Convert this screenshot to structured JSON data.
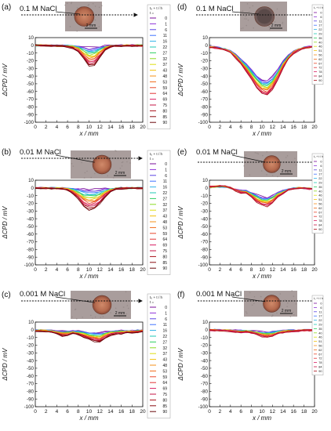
{
  "figure": {
    "panel_labels": [
      "(a)",
      "(b)",
      "(c)",
      "(d)",
      "(e)",
      "(f)"
    ],
    "scale_bar_label": "2 mm"
  },
  "legend_title_lines": [
    "t₀ + t / h",
    "t ="
  ],
  "legend_title_compact": "t₀ + t / h",
  "colors": [
    "#7a0d9a",
    "#8e34d8",
    "#5b44e3",
    "#3f72ff",
    "#2fb3e8",
    "#1fc9b5",
    "#2dcf62",
    "#8bdc22",
    "#dede12",
    "#f2c10c",
    "#f6901a",
    "#f06a16",
    "#e8482c",
    "#e23236",
    "#d81e62",
    "#c41444",
    "#aa1018",
    "#8a0c10",
    "#6a080c",
    "#4a0608"
  ],
  "chart_data": [
    {
      "panel": "(a)",
      "type": "line",
      "title": "0.1 M NaCl",
      "xlabel": "x / mm",
      "ylabel": "ΔCPD / mV",
      "xlim": [
        0,
        20
      ],
      "ylim": [
        -100,
        10
      ],
      "xticks": [
        0,
        2,
        4,
        6,
        8,
        10,
        12,
        14,
        16,
        18,
        20
      ],
      "yticks": [
        10,
        0,
        -10,
        -20,
        -30,
        -40,
        -50,
        -60,
        -70,
        -80,
        -90,
        -100
      ],
      "legend": [
        "0",
        "1",
        "6",
        "11",
        "16",
        "22",
        "27",
        "32",
        "37",
        "43",
        "48",
        "53",
        "59",
        "64",
        "69",
        "75",
        "80",
        "85",
        "90"
      ],
      "x": [
        0,
        1,
        2,
        3,
        4,
        5,
        6,
        7,
        8,
        9,
        10,
        11,
        12,
        13,
        14,
        15,
        16,
        17,
        18,
        19,
        20
      ],
      "depth_first": -3,
      "depth_last": -29,
      "profile": [
        0,
        0,
        0.02,
        0.03,
        0.04,
        0.05,
        0.07,
        0.12,
        0.28,
        0.62,
        0.95,
        0.9,
        0.55,
        0.22,
        0.08,
        0.04,
        0.03,
        0.02,
        0.02,
        0.02,
        0.02
      ]
    },
    {
      "panel": "(b)",
      "type": "line",
      "title": "0.01 M NaCl",
      "xlabel": "x / mm",
      "ylabel": "ΔCPD / mV",
      "xlim": [
        0,
        20
      ],
      "ylim": [
        -100,
        10
      ],
      "xticks": [
        0,
        2,
        4,
        6,
        8,
        10,
        12,
        14,
        16,
        18,
        20
      ],
      "yticks": [
        10,
        0,
        -10,
        -20,
        -30,
        -40,
        -50,
        -60,
        -70,
        -80,
        -90,
        -100
      ],
      "legend": [
        "0",
        "1",
        "6",
        "11",
        "16",
        "22",
        "27",
        "32",
        "37",
        "43",
        "48",
        "53",
        "59",
        "64",
        "69",
        "75",
        "80",
        "85",
        "90"
      ],
      "x": [
        0,
        1,
        2,
        3,
        4,
        5,
        6,
        7,
        8,
        9,
        10,
        11,
        12,
        13,
        14,
        15,
        16,
        17,
        18,
        19,
        20
      ],
      "depth_first": -2,
      "depth_last": -30,
      "profile": [
        0,
        0,
        0.02,
        0.02,
        0.03,
        0.05,
        0.1,
        0.25,
        0.5,
        0.8,
        0.95,
        0.92,
        0.7,
        0.4,
        0.18,
        0.06,
        0.03,
        0.02,
        0.02,
        0.02,
        0.02
      ]
    },
    {
      "panel": "(c)",
      "type": "line",
      "title": "0.001 M NaCl",
      "xlabel": "x / mm",
      "ylabel": "ΔCPD / mV",
      "xlim": [
        0,
        20
      ],
      "ylim": [
        -100,
        10
      ],
      "xticks": [
        0,
        2,
        4,
        6,
        8,
        10,
        12,
        14,
        16,
        18,
        20
      ],
      "yticks": [
        10,
        0,
        -10,
        -20,
        -30,
        -40,
        -50,
        -60,
        -70,
        -80,
        -90,
        -100
      ],
      "legend": [
        "0",
        "1",
        "6",
        "11",
        "16",
        "22",
        "27",
        "32",
        "37",
        "43",
        "48",
        "53",
        "59",
        "64",
        "69",
        "75",
        "80",
        "85",
        "90"
      ],
      "x": [
        0,
        1,
        2,
        3,
        4,
        5,
        6,
        7,
        8,
        9,
        10,
        11,
        12,
        13,
        14,
        15,
        16,
        17,
        18,
        19,
        20
      ],
      "depth_first": -4,
      "depth_last": -16,
      "profile": [
        0.1,
        0.12,
        0.15,
        0.22,
        0.35,
        0.5,
        0.45,
        0.3,
        0.4,
        0.6,
        0.8,
        0.95,
        1.0,
        0.7,
        0.45,
        0.35,
        0.3,
        0.25,
        0.25,
        0.2,
        0.1
      ]
    },
    {
      "panel": "(d)",
      "type": "line",
      "title": "0.1 M NaCl",
      "xlabel": "x / mm",
      "ylabel": "ΔCPD / mV",
      "xlim": [
        0,
        20
      ],
      "ylim": [
        -100,
        10
      ],
      "xticks": [
        0,
        2,
        4,
        6,
        8,
        10,
        12,
        14,
        16,
        18,
        20
      ],
      "yticks": [
        10,
        0,
        -10,
        -20,
        -30,
        -40,
        -50,
        -60,
        -70,
        -80,
        -90,
        -100
      ],
      "legend": [
        "0",
        "6",
        "11",
        "17",
        "22",
        "29",
        "35",
        "40",
        "46",
        "51",
        "56",
        "62",
        "67",
        "72",
        "78",
        "84",
        "90"
      ],
      "x": [
        0,
        1,
        2,
        3,
        4,
        5,
        6,
        7,
        8,
        9,
        10,
        11,
        12,
        13,
        14,
        15,
        16,
        17,
        18,
        19,
        20
      ],
      "depth_first": -46,
      "depth_last": -65,
      "profile": [
        0.04,
        0.05,
        0.07,
        0.1,
        0.15,
        0.25,
        0.38,
        0.52,
        0.68,
        0.85,
        0.97,
        1.0,
        0.88,
        0.68,
        0.45,
        0.28,
        0.16,
        0.1,
        0.06,
        0.04,
        0.03
      ]
    },
    {
      "panel": "(e)",
      "type": "line",
      "title": "0.01 M NaCl",
      "xlabel": "x / mm",
      "ylabel": "ΔCPD / mV",
      "xlim": [
        0,
        20
      ],
      "ylim": [
        -100,
        10
      ],
      "xticks": [
        0,
        2,
        4,
        6,
        8,
        10,
        12,
        14,
        16,
        18,
        20
      ],
      "yticks": [
        10,
        0,
        -10,
        -20,
        -30,
        -40,
        -50,
        -60,
        -70,
        -80,
        -90,
        -100
      ],
      "legend": [
        "0",
        "6",
        "11",
        "17",
        "22",
        "29",
        "35",
        "40",
        "46",
        "51",
        "56",
        "62",
        "67",
        "72",
        "78",
        "84",
        "90"
      ],
      "x": [
        0,
        1,
        2,
        3,
        4,
        5,
        6,
        7,
        8,
        9,
        10,
        11,
        12,
        13,
        14,
        15,
        16,
        17,
        18,
        19,
        20
      ],
      "depth_first": -12,
      "depth_last": -24,
      "profile": [
        -0.08,
        -0.1,
        -0.12,
        -0.1,
        0.0,
        0.15,
        0.25,
        0.3,
        0.5,
        0.75,
        0.95,
        1.0,
        0.8,
        0.5,
        0.3,
        0.12,
        0.05,
        0.0,
        0.02,
        0.05,
        0.08
      ]
    },
    {
      "panel": "(f)",
      "type": "line",
      "title": "0.001 M NaCl",
      "xlabel": "x / mm",
      "ylabel": "ΔCPD / mV",
      "xlim": [
        0,
        20
      ],
      "ylim": [
        -100,
        10
      ],
      "xticks": [
        0,
        2,
        4,
        6,
        8,
        10,
        12,
        14,
        16,
        18,
        20
      ],
      "yticks": [
        10,
        0,
        -10,
        -20,
        -30,
        -40,
        -50,
        -60,
        -70,
        -80,
        -90,
        -100
      ],
      "legend": [
        "0",
        "6",
        "11",
        "17",
        "22",
        "29",
        "35",
        "40",
        "46",
        "51",
        "56",
        "62",
        "67",
        "72",
        "78",
        "84",
        "90"
      ],
      "x": [
        0,
        1,
        2,
        3,
        4,
        5,
        6,
        7,
        8,
        9,
        10,
        11,
        12,
        13,
        14,
        15,
        16,
        17,
        18,
        19,
        20
      ],
      "depth_first": -3,
      "depth_last": -10,
      "profile": [
        0.05,
        0.08,
        0.1,
        0.12,
        0.18,
        0.3,
        0.35,
        0.3,
        0.4,
        0.6,
        0.85,
        1.0,
        0.8,
        0.5,
        0.35,
        0.25,
        0.2,
        0.15,
        0.1,
        0.08,
        0.05
      ]
    }
  ]
}
